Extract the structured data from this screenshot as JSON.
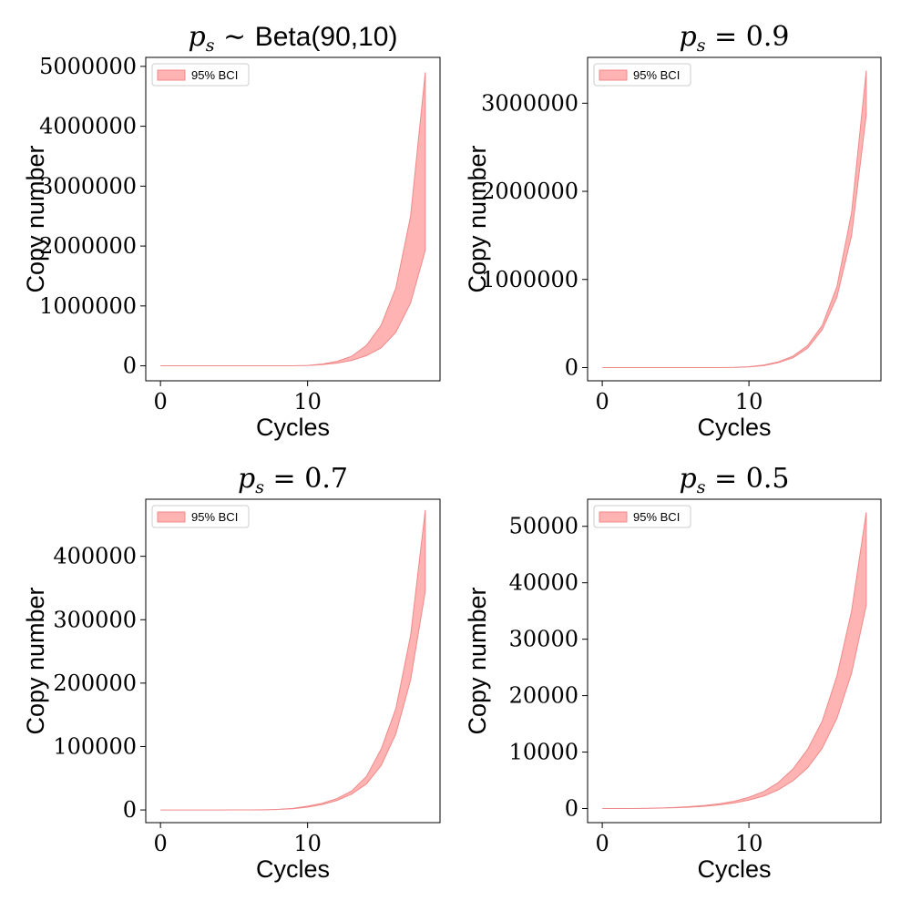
{
  "chart_data": [
    {
      "type": "area",
      "title": {
        "var": "p",
        "sub": "s",
        "rel": "∼",
        "rest": "Beta(90,10)"
      },
      "xlabel": "Cycles",
      "ylabel": "Copy number",
      "xlim": [
        -1,
        19
      ],
      "ylim": [
        -250000,
        5150000
      ],
      "xticks": [
        0,
        10
      ],
      "yticks": [
        0,
        1000000,
        2000000,
        3000000,
        4000000,
        5000000
      ],
      "legend": {
        "label": "95% BCI",
        "placement": "upper-left"
      },
      "series": [
        {
          "name": "95% BCI",
          "x": [
            0,
            1,
            2,
            3,
            4,
            5,
            6,
            7,
            8,
            9,
            10,
            11,
            12,
            13,
            14,
            15,
            16,
            17,
            18
          ],
          "lower": [
            1,
            2,
            4,
            7,
            13,
            23,
            42,
            120,
            300,
            1000,
            4000,
            20000,
            45000,
            90000,
            170000,
            300000,
            560000,
            1050000,
            1930000
          ],
          "upper": [
            1,
            2,
            4,
            8,
            16,
            30,
            60,
            150,
            500,
            1500,
            6000,
            30000,
            75000,
            160000,
            340000,
            680000,
            1300000,
            2500000,
            4900000
          ]
        }
      ]
    },
    {
      "type": "area",
      "title": {
        "var": "p",
        "sub": "s",
        "rel": "=",
        "rest": "0.9"
      },
      "xlabel": "Cycles",
      "ylabel": "Copy number",
      "xlim": [
        -1,
        19
      ],
      "ylim": [
        -150000,
        3520000
      ],
      "xticks": [
        0,
        10
      ],
      "yticks": [
        0,
        1000000,
        2000000,
        3000000
      ],
      "legend": {
        "label": "95% BCI",
        "placement": "upper-left"
      },
      "series": [
        {
          "name": "95% BCI",
          "x": [
            0,
            1,
            2,
            3,
            4,
            5,
            6,
            7,
            8,
            9,
            10,
            11,
            12,
            13,
            14,
            15,
            16,
            17,
            18
          ],
          "lower": [
            1,
            2,
            4,
            7,
            13,
            25,
            47,
            90,
            200,
            1000,
            8000,
            22000,
            55000,
            110000,
            220000,
            430000,
            800000,
            1500000,
            2870000
          ],
          "upper": [
            1,
            2,
            4,
            7,
            14,
            26,
            50,
            100,
            250,
            2000,
            10000,
            28000,
            65000,
            130000,
            250000,
            480000,
            920000,
            1760000,
            3370000
          ]
        }
      ]
    },
    {
      "type": "area",
      "title": {
        "var": "p",
        "sub": "s",
        "rel": "=",
        "rest": "0.7"
      },
      "xlabel": "Cycles",
      "ylabel": "Copy number",
      "xlim": [
        -1,
        19
      ],
      "ylim": [
        -20000,
        490000
      ],
      "xticks": [
        0,
        10
      ],
      "yticks": [
        0,
        100000,
        200000,
        300000,
        400000
      ],
      "legend": {
        "label": "95% BCI",
        "placement": "upper-left"
      },
      "series": [
        {
          "name": "95% BCI",
          "x": [
            0,
            1,
            2,
            3,
            4,
            5,
            6,
            7,
            8,
            9,
            10,
            11,
            12,
            13,
            14,
            15,
            16,
            17,
            18
          ],
          "lower": [
            1,
            2,
            3,
            5,
            10,
            20,
            50,
            200,
            800,
            2000,
            4500,
            8500,
            15000,
            25000,
            41000,
            70000,
            120000,
            205000,
            345000
          ],
          "upper": [
            1,
            2,
            3,
            5,
            10,
            20,
            60,
            300,
            1000,
            2500,
            6000,
            10500,
            18000,
            30000,
            53000,
            96000,
            160000,
            275000,
            473000
          ]
        }
      ]
    },
    {
      "type": "area",
      "title": {
        "var": "p",
        "sub": "s",
        "rel": "=",
        "rest": "0.5"
      },
      "xlabel": "Cycles",
      "ylabel": "Copy number",
      "xlim": [
        -1,
        19
      ],
      "ylim": [
        -2500,
        54800
      ],
      "xticks": [
        0,
        10
      ],
      "yticks": [
        0,
        10000,
        20000,
        30000,
        40000,
        50000
      ],
      "legend": {
        "label": "95% BCI",
        "placement": "upper-left"
      },
      "series": [
        {
          "name": "95% BCI",
          "x": [
            0,
            1,
            2,
            3,
            4,
            5,
            6,
            7,
            8,
            9,
            10,
            11,
            12,
            13,
            14,
            15,
            16,
            17,
            18
          ],
          "lower": [
            1,
            3,
            8,
            30,
            80,
            150,
            250,
            400,
            650,
            1000,
            1500,
            2200,
            3300,
            4900,
            7200,
            10700,
            16000,
            24000,
            36000
          ],
          "upper": [
            1,
            3,
            10,
            40,
            100,
            200,
            350,
            550,
            850,
            1300,
            2000,
            3000,
            4600,
            7000,
            10500,
            15500,
            23500,
            35000,
            52500
          ]
        }
      ]
    }
  ]
}
